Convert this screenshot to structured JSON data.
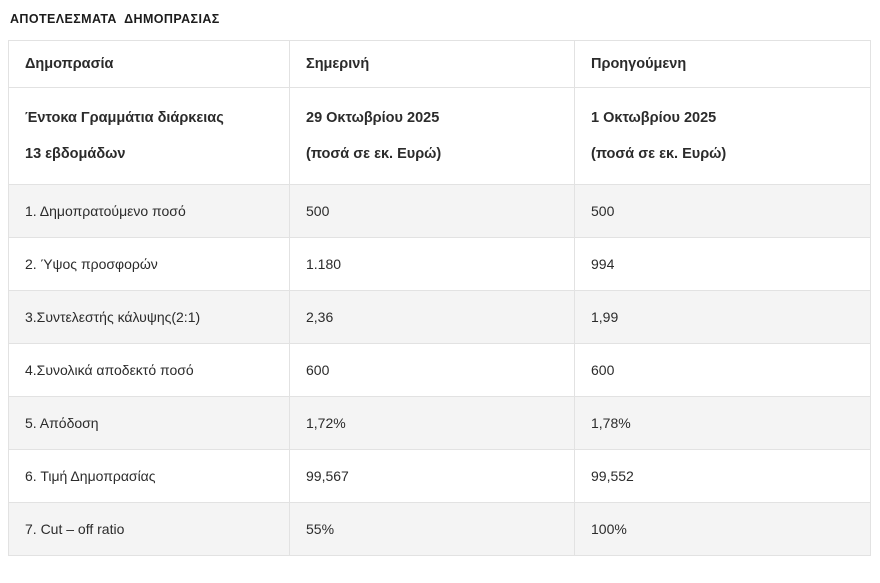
{
  "page_title": "ΑΠΟΤΕΛΕΣΜΑΤΑ  ΔΗΜΟΠΡΑΣΙΑΣ",
  "table": {
    "headers": [
      "Δημοπρασία",
      "Σημερινή",
      "Προηγούμενη"
    ],
    "subheader": {
      "label_line1": "Έντοκα Γραμμάτια διάρκειας",
      "label_line2": "13 εβδομάδων",
      "today_line1": "29 Οκτωβρίου 2025",
      "today_line2": "(ποσά σε εκ. Ευρώ)",
      "previous_line1": "1 Οκτωβρίου 2025",
      "previous_line2": "(ποσά σε εκ. Ευρώ)"
    },
    "rows": [
      {
        "label": "1. Δημοπρατούμενο ποσό",
        "today": "500",
        "previous": "500"
      },
      {
        "label": "2. Ύψος προσφορών",
        "today": "1.180",
        "previous": "994"
      },
      {
        "label": "3.Συντελεστής κάλυψης(2:1)",
        "today": "2,36",
        "previous": "1,99"
      },
      {
        "label": "4.Συνολικά αποδεκτό ποσό",
        "today": "600",
        "previous": "600"
      },
      {
        "label": "5. Απόδοση",
        "today": "1,72%",
        "previous": "1,78%"
      },
      {
        "label": "6. Τιμή Δημοπρασίας",
        "today": "99,567",
        "previous": "99,552"
      },
      {
        "label": "7. Cut – off ratio",
        "today": "55%",
        "previous": "100%"
      }
    ]
  },
  "colors": {
    "row_alt_bg": "#f4f4f4",
    "border": "#e2e2e2",
    "text": "#2b2b2b"
  }
}
